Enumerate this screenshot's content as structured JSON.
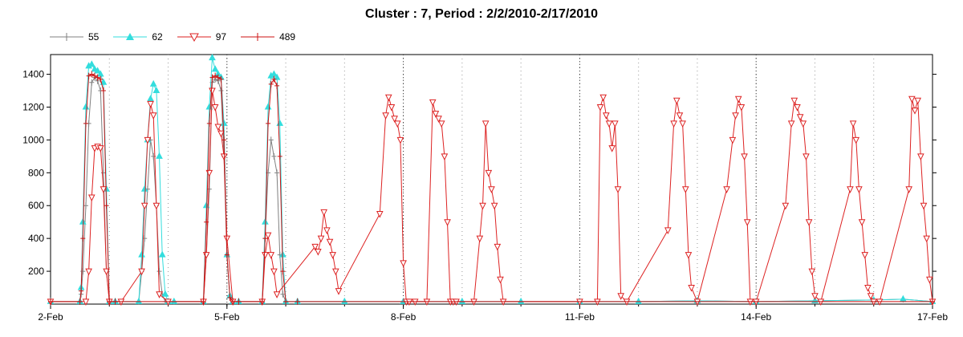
{
  "chart_data": {
    "type": "line",
    "title": "Cluster : 7, Period : 2/2/2010-2/17/2010",
    "xlabel": "",
    "ylabel": "",
    "ylim": [
      0,
      1520
    ],
    "x_ticks": [
      "2-Feb",
      "5-Feb",
      "8-Feb",
      "11-Feb",
      "14-Feb",
      "17-Feb"
    ],
    "x_tick_days": [
      2,
      5,
      8,
      11,
      14,
      17
    ],
    "y_ticks": [
      200,
      400,
      600,
      800,
      1000,
      1200,
      1400
    ],
    "grid": "vertical dotted",
    "legend_position": "top-left",
    "series": [
      {
        "name": "55",
        "color": "#808080",
        "marker": "plus",
        "x": [
          2.0,
          2.5,
          2.52,
          2.55,
          2.6,
          2.65,
          2.7,
          2.75,
          2.8,
          2.85,
          2.9,
          2.95,
          3.0,
          3.1,
          3.5,
          3.55,
          3.6,
          3.65,
          3.7,
          3.75,
          3.8,
          3.85,
          3.9,
          3.95,
          4.0,
          4.1,
          4.6,
          4.65,
          4.7,
          4.75,
          4.8,
          4.85,
          4.9,
          4.95,
          5.0,
          5.05,
          5.1,
          5.2,
          5.6,
          5.65,
          5.7,
          5.75,
          5.8,
          5.85,
          5.9,
          5.95,
          6.0,
          6.2,
          7.0,
          8.0,
          9.0,
          10.0,
          11.0,
          12.0,
          13.0,
          14.0,
          15.0,
          16.0,
          16.5,
          17.0
        ],
        "y": [
          15,
          15,
          60,
          200,
          600,
          1100,
          1350,
          1380,
          1360,
          1300,
          800,
          200,
          15,
          15,
          15,
          200,
          400,
          700,
          1000,
          900,
          600,
          200,
          60,
          15,
          15,
          15,
          15,
          300,
          700,
          1350,
          1370,
          1360,
          1300,
          900,
          300,
          50,
          15,
          15,
          15,
          400,
          800,
          1000,
          900,
          800,
          300,
          60,
          15,
          15,
          15,
          15,
          15,
          15,
          15,
          15,
          20,
          15,
          20,
          25,
          30,
          15
        ]
      },
      {
        "name": "62",
        "color": "#33dddd",
        "marker": "triangle-up",
        "x": [
          2.0,
          2.5,
          2.52,
          2.55,
          2.6,
          2.65,
          2.7,
          2.75,
          2.8,
          2.85,
          2.9,
          2.95,
          3.0,
          3.1,
          3.5,
          3.55,
          3.6,
          3.65,
          3.7,
          3.75,
          3.8,
          3.85,
          3.9,
          3.95,
          4.0,
          4.1,
          4.6,
          4.65,
          4.7,
          4.75,
          4.8,
          4.85,
          4.9,
          4.95,
          5.0,
          5.05,
          5.1,
          5.2,
          5.6,
          5.65,
          5.7,
          5.75,
          5.8,
          5.85,
          5.9,
          5.95,
          6.0,
          6.2,
          7.0,
          8.0,
          9.0,
          10.0,
          11.0,
          12.0,
          13.0,
          14.0,
          15.0,
          16.0,
          16.5,
          17.0
        ],
        "y": [
          15,
          15,
          100,
          500,
          1200,
          1450,
          1460,
          1430,
          1420,
          1400,
          1350,
          700,
          15,
          15,
          15,
          300,
          700,
          1000,
          1250,
          1340,
          1300,
          900,
          300,
          60,
          15,
          15,
          15,
          600,
          1200,
          1500,
          1430,
          1400,
          1380,
          1100,
          300,
          50,
          15,
          15,
          15,
          500,
          1200,
          1390,
          1400,
          1380,
          1100,
          300,
          15,
          15,
          15,
          15,
          15,
          15,
          15,
          15,
          20,
          15,
          20,
          25,
          30,
          15
        ]
      },
      {
        "name": "97",
        "color": "#dd2222",
        "marker": "triangle-down",
        "x": [
          2.0,
          2.6,
          2.65,
          2.7,
          2.75,
          2.8,
          2.85,
          2.9,
          2.95,
          3.0,
          3.2,
          3.55,
          3.6,
          3.65,
          3.7,
          3.75,
          3.8,
          3.85,
          4.0,
          4.6,
          4.65,
          4.7,
          4.75,
          4.8,
          4.85,
          4.9,
          4.95,
          5.0,
          5.1,
          5.6,
          5.65,
          5.7,
          5.75,
          5.8,
          5.85,
          6.5,
          6.55,
          6.6,
          6.65,
          6.7,
          6.75,
          6.8,
          6.85,
          6.9,
          7.6,
          7.7,
          7.75,
          7.8,
          7.85,
          7.9,
          7.95,
          8.0,
          8.05,
          8.1,
          8.2,
          8.4,
          8.5,
          8.55,
          8.6,
          8.65,
          8.7,
          8.75,
          8.8,
          8.85,
          8.9,
          9.2,
          9.3,
          9.35,
          9.4,
          9.45,
          9.5,
          9.55,
          9.6,
          9.65,
          9.7,
          11.0,
          11.3,
          11.35,
          11.4,
          11.45,
          11.5,
          11.55,
          11.6,
          11.65,
          11.7,
          11.8,
          12.5,
          12.6,
          12.65,
          12.7,
          12.75,
          12.8,
          12.85,
          12.9,
          13.0,
          13.5,
          13.6,
          13.65,
          13.7,
          13.75,
          13.8,
          13.85,
          13.9,
          14.0,
          14.5,
          14.6,
          14.65,
          14.7,
          14.75,
          14.8,
          14.85,
          14.9,
          14.95,
          15.0,
          15.1,
          15.6,
          15.65,
          15.7,
          15.75,
          15.8,
          15.85,
          15.9,
          15.95,
          16.0,
          16.1,
          16.6,
          16.65,
          16.7,
          16.75,
          16.8,
          16.85,
          16.9,
          16.95,
          17.0
        ],
        "y": [
          15,
          15,
          200,
          650,
          950,
          960,
          950,
          700,
          200,
          15,
          15,
          200,
          600,
          1000,
          1220,
          1150,
          600,
          60,
          15,
          15,
          300,
          800,
          1300,
          1200,
          1080,
          1040,
          900,
          400,
          15,
          15,
          300,
          420,
          300,
          200,
          60,
          350,
          320,
          400,
          560,
          450,
          380,
          300,
          200,
          80,
          550,
          1150,
          1260,
          1200,
          1130,
          1100,
          1000,
          250,
          15,
          15,
          15,
          15,
          1230,
          1160,
          1130,
          1100,
          900,
          500,
          15,
          15,
          15,
          15,
          400,
          600,
          1100,
          800,
          700,
          600,
          350,
          150,
          15,
          15,
          15,
          1200,
          1260,
          1150,
          1100,
          950,
          1100,
          700,
          50,
          15,
          450,
          1100,
          1240,
          1150,
          1100,
          700,
          300,
          100,
          15,
          700,
          1000,
          1150,
          1250,
          1200,
          900,
          500,
          15,
          15,
          600,
          1100,
          1240,
          1200,
          1140,
          1100,
          900,
          500,
          200,
          50,
          15,
          700,
          1100,
          1000,
          700,
          500,
          300,
          100,
          50,
          15,
          15,
          700,
          1250,
          1180,
          1240,
          900,
          600,
          400,
          150,
          15
        ]
      },
      {
        "name": "489",
        "color": "#cc1111",
        "marker": "plus",
        "x": [
          2.0,
          2.5,
          2.52,
          2.55,
          2.6,
          2.65,
          2.7,
          2.75,
          2.8,
          2.85,
          2.9,
          2.95,
          3.0,
          3.1,
          4.6,
          4.65,
          4.7,
          4.75,
          4.8,
          4.85,
          4.9,
          4.95,
          5.0,
          5.05,
          5.1,
          5.2,
          5.6,
          5.65,
          5.7,
          5.75,
          5.8,
          5.85,
          5.9,
          5.95,
          6.0,
          6.2,
          17.0
        ],
        "y": [
          15,
          15,
          80,
          400,
          1100,
          1390,
          1400,
          1390,
          1380,
          1370,
          1300,
          600,
          15,
          15,
          15,
          500,
          1100,
          1380,
          1390,
          1380,
          1370,
          1000,
          300,
          40,
          15,
          15,
          15,
          400,
          1100,
          1340,
          1370,
          1330,
          900,
          200,
          15,
          15,
          15
        ]
      }
    ]
  }
}
